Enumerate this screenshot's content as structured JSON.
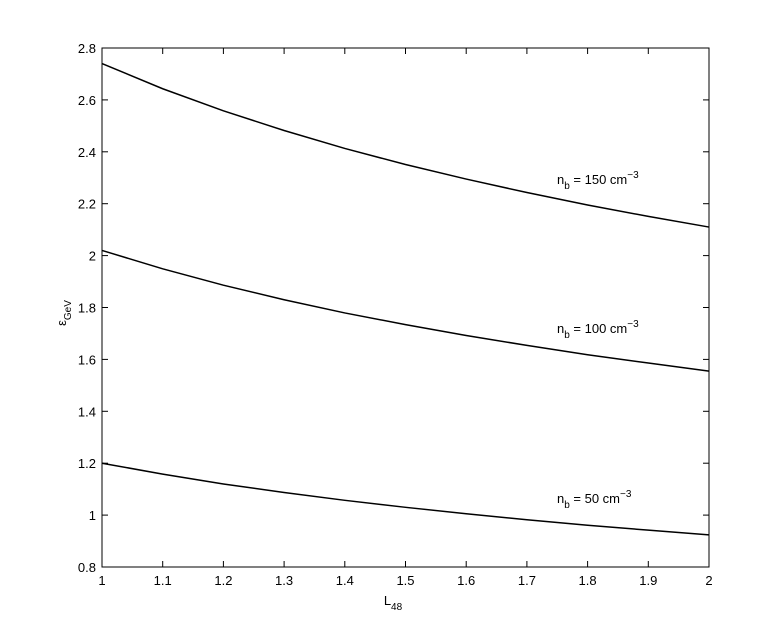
{
  "chart_data": {
    "type": "line",
    "x_label": {
      "base": "L",
      "sub": "48"
    },
    "y_label": {
      "base": "ε",
      "sub": "GeV"
    },
    "x": [
      1,
      1.1,
      1.2,
      1.3,
      1.4,
      1.5,
      1.6,
      1.7,
      1.8,
      1.9,
      2
    ],
    "series": [
      {
        "color": "#000000",
        "values": [
          2.74,
          2.643,
          2.558,
          2.482,
          2.413,
          2.351,
          2.295,
          2.243,
          2.195,
          2.151,
          2.11
        ]
      },
      {
        "color": "#000000",
        "values": [
          2.02,
          1.949,
          1.886,
          1.83,
          1.779,
          1.734,
          1.692,
          1.654,
          1.618,
          1.586,
          1.555
        ]
      },
      {
        "color": "#000000",
        "values": [
          1.2,
          1.158,
          1.12,
          1.087,
          1.057,
          1.03,
          1.005,
          0.982,
          0.961,
          0.942,
          0.924
        ]
      }
    ],
    "annotations": [
      {
        "base": "n",
        "sub": "b",
        "text": " = 150 cm",
        "sup": "−3"
      },
      {
        "base": "n",
        "sub": "b",
        "text": " = 100 cm",
        "sup": "−3"
      },
      {
        "base": "n",
        "sub": "b",
        "text": " = 50 cm",
        "sup": "−3"
      }
    ],
    "xlim": [
      1,
      2
    ],
    "xticks": [
      1,
      1.1,
      1.2,
      1.3,
      1.4,
      1.5,
      1.6,
      1.7,
      1.8,
      1.9,
      2
    ],
    "ylim": [
      0.8,
      2.8
    ],
    "yticks": [
      0.8,
      1,
      1.2,
      1.4,
      1.6,
      1.8,
      2,
      2.2,
      2.4,
      2.6,
      2.8
    ],
    "grid": false
  }
}
